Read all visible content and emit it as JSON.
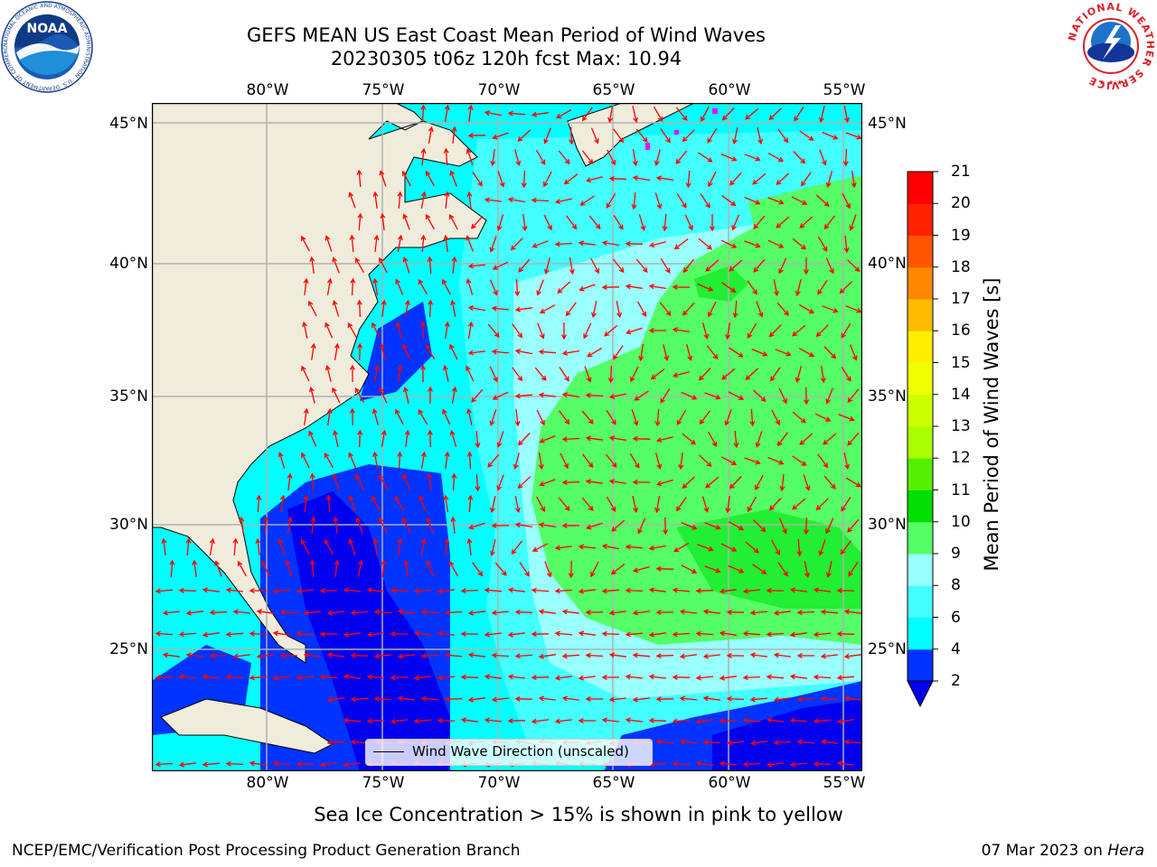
{
  "title": "GEFS MEAN US East Coast Mean Period of Wind Waves",
  "subtitle": "20230305 t06z 120h fcst   Max: 10.94",
  "logos": {
    "left": "NOAA",
    "left_ring_text": "NATIONAL OCEANIC AND ATMOSPHERIC ADMINISTRATION · U.S. DEPARTMENT OF COMMERCE",
    "right_ring_text": "NATIONAL WEATHER SERVICE"
  },
  "map": {
    "projection": "equirectangular",
    "lon_range": [
      -85,
      -54.2
    ],
    "lat_range": [
      20.5,
      46
    ],
    "longitude_ticks": [
      "80°W",
      "75°W",
      "70°W",
      "65°W",
      "60°W",
      "55°W"
    ],
    "latitude_ticks": [
      "45°N",
      "40°N",
      "35°N",
      "30°N",
      "25°N"
    ],
    "grid": true,
    "colors": {
      "land": "#efecdc",
      "coast": "#000000",
      "grid": "#b0b0b0",
      "arrows": "#ff0000",
      "ice": "#ff00ff"
    }
  },
  "colorbar": {
    "label": "Mean Period of Wind Waves [s]",
    "ticks": [
      "2",
      "4",
      "6",
      "8",
      "9",
      "10",
      "11",
      "12",
      "13",
      "14",
      "15",
      "16",
      "17",
      "18",
      "19",
      "20",
      "21"
    ],
    "bins": [
      {
        "range": "2-4",
        "color": "#0033ff"
      },
      {
        "range": "4-6",
        "color": "#00ffff"
      },
      {
        "range": "6-8",
        "color": "#44ffff"
      },
      {
        "range": "8-9",
        "color": "#99ffff"
      },
      {
        "range": "9-10",
        "color": "#55ff66"
      },
      {
        "range": "10-11",
        "color": "#00dd00"
      },
      {
        "range": "11-12",
        "color": "#55ee00"
      },
      {
        "range": "12-13",
        "color": "#aaff00"
      },
      {
        "range": "13-14",
        "color": "#ccff00"
      },
      {
        "range": "14-15",
        "color": "#eeff00"
      },
      {
        "range": "15-16",
        "color": "#ffee00"
      },
      {
        "range": "16-17",
        "color": "#ffbb00"
      },
      {
        "range": "17-18",
        "color": "#ff8800"
      },
      {
        "range": "18-19",
        "color": "#ff5500"
      },
      {
        "range": "19-20",
        "color": "#ff2200"
      },
      {
        "range": "20-21",
        "color": "#ff0000"
      }
    ],
    "under_color": "#0000ee"
  },
  "legend": {
    "label": "Wind Wave Direction (unscaled)"
  },
  "note": "Sea Ice Concentration > 15% is shown in pink to yellow",
  "footer": {
    "left": "NCEP/EMC/Verification Post Processing Product Generation Branch",
    "date": "07 Mar 2023 on",
    "machine": "Hera"
  }
}
